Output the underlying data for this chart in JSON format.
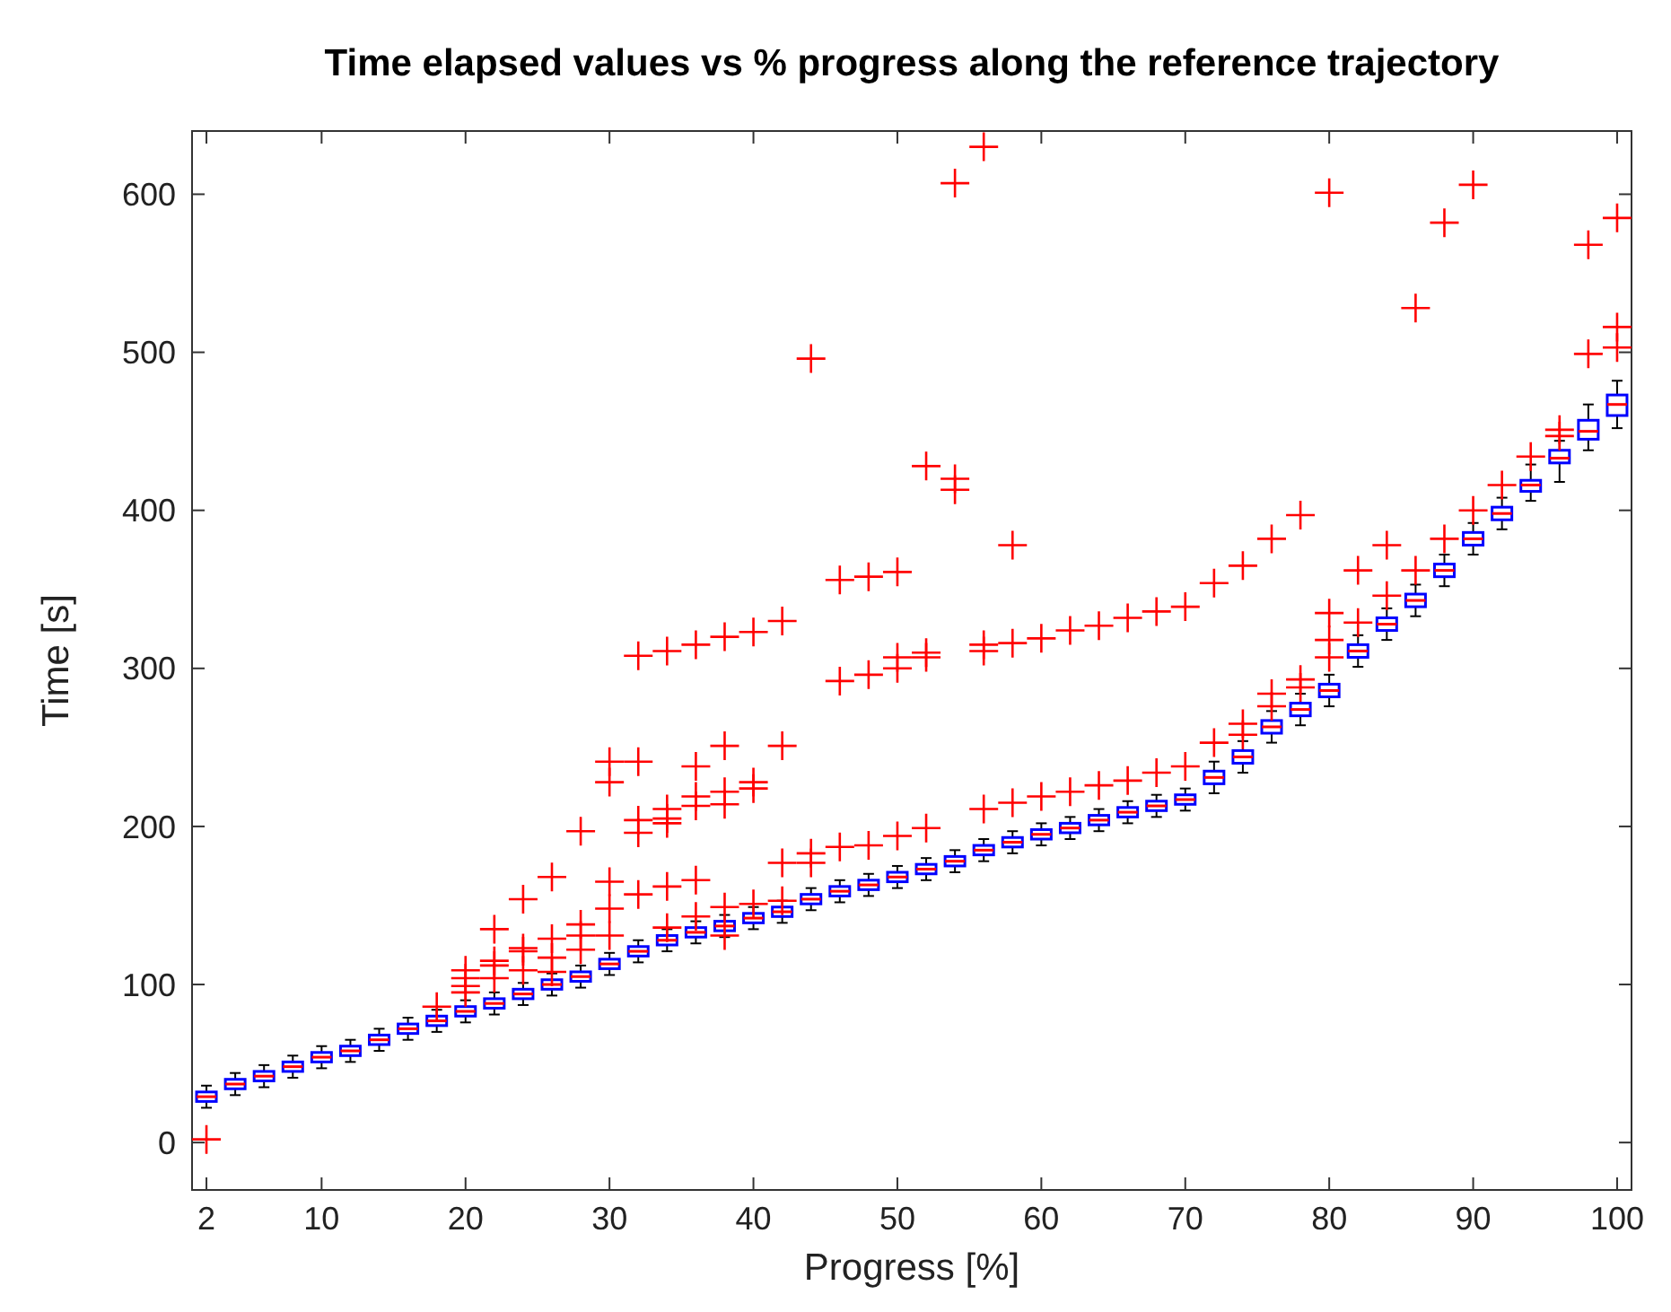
{
  "chart_data": {
    "type": "box",
    "title": "Time elapsed values vs % progress along the reference trajectory",
    "xlabel": "Progress [%]",
    "ylabel": "Time [s]",
    "x": [
      2,
      4,
      6,
      8,
      10,
      12,
      14,
      16,
      18,
      20,
      22,
      24,
      26,
      28,
      30,
      32,
      34,
      36,
      38,
      40,
      42,
      44,
      46,
      48,
      50,
      52,
      54,
      56,
      58,
      60,
      62,
      64,
      66,
      68,
      70,
      72,
      74,
      76,
      78,
      80,
      82,
      84,
      86,
      88,
      90,
      92,
      94,
      96,
      98,
      100
    ],
    "xlim": [
      1,
      101
    ],
    "xticks": [
      2,
      10,
      20,
      30,
      40,
      50,
      60,
      70,
      80,
      90,
      100
    ],
    "ylim": [
      -30,
      640
    ],
    "yticks": [
      0,
      100,
      200,
      300,
      400,
      500,
      600
    ],
    "color": "#0000ff",
    "marker": "cross",
    "grid": false,
    "boxes": [
      {
        "low": 22,
        "q1": 26,
        "median": 29,
        "q3": 32,
        "high": 36,
        "outliers": [
          2
        ]
      },
      {
        "low": 30,
        "q1": 34,
        "median": 37,
        "q3": 40,
        "high": 44
      },
      {
        "low": 35,
        "q1": 39,
        "median": 42,
        "q3": 45,
        "high": 49
      },
      {
        "low": 41,
        "q1": 45,
        "median": 48,
        "q3": 51,
        "high": 55
      },
      {
        "low": 47,
        "q1": 51,
        "median": 54,
        "q3": 57,
        "high": 61
      },
      {
        "low": 51,
        "q1": 55,
        "median": 58,
        "q3": 61,
        "high": 65
      },
      {
        "low": 58,
        "q1": 62,
        "median": 65,
        "q3": 68,
        "high": 72
      },
      {
        "low": 65,
        "q1": 69,
        "median": 72,
        "q3": 75,
        "high": 79
      },
      {
        "low": 70,
        "q1": 74,
        "median": 77,
        "q3": 80,
        "high": 84,
        "outliers": [
          86
        ]
      },
      {
        "low": 76,
        "q1": 80,
        "median": 83,
        "q3": 86,
        "high": 90,
        "outliers": [
          109,
          104,
          99,
          95
        ]
      },
      {
        "low": 81,
        "q1": 85,
        "median": 88,
        "q3": 91,
        "high": 95,
        "outliers": [
          135,
          115,
          112,
          104
        ]
      },
      {
        "low": 87,
        "q1": 91,
        "median": 94,
        "q3": 97,
        "high": 101,
        "outliers": [
          154,
          123,
          121,
          109
        ]
      },
      {
        "low": 93,
        "q1": 97,
        "median": 100,
        "q3": 103,
        "high": 107,
        "outliers": [
          168,
          129,
          117,
          108
        ]
      },
      {
        "low": 98,
        "q1": 102,
        "median": 105,
        "q3": 108,
        "high": 112,
        "outliers": [
          197,
          138,
          131,
          122
        ]
      },
      {
        "low": 106,
        "q1": 110,
        "median": 113,
        "q3": 116,
        "high": 120,
        "outliers": [
          241,
          228,
          165,
          148,
          131
        ]
      },
      {
        "low": 114,
        "q1": 118,
        "median": 121,
        "q3": 124,
        "high": 128,
        "outliers": [
          308,
          241,
          204,
          196,
          157
        ]
      },
      {
        "low": 121,
        "q1": 125,
        "median": 128,
        "q3": 131,
        "high": 135,
        "outliers": [
          311,
          211,
          205,
          202,
          162,
          136
        ]
      },
      {
        "low": 126,
        "q1": 130,
        "median": 133,
        "q3": 136,
        "high": 140,
        "outliers": [
          315,
          238,
          219,
          213,
          166,
          143
        ]
      },
      {
        "low": 130,
        "q1": 134,
        "median": 137,
        "q3": 140,
        "high": 144,
        "outliers": [
          320,
          251,
          222,
          214,
          149,
          131
        ]
      },
      {
        "low": 135,
        "q1": 139,
        "median": 142,
        "q3": 145,
        "high": 149,
        "outliers": [
          323,
          228,
          224,
          151
        ]
      },
      {
        "low": 139,
        "q1": 143,
        "median": 146,
        "q3": 149,
        "high": 153,
        "outliers": [
          330,
          251,
          177,
          153
        ]
      },
      {
        "low": 147,
        "q1": 151,
        "median": 154,
        "q3": 157,
        "high": 161,
        "outliers": [
          496,
          183,
          177
        ]
      },
      {
        "low": 152,
        "q1": 156,
        "median": 159,
        "q3": 162,
        "high": 166,
        "outliers": [
          356,
          292,
          187
        ]
      },
      {
        "low": 156,
        "q1": 160,
        "median": 163,
        "q3": 166,
        "high": 170,
        "outliers": [
          358,
          296,
          188
        ]
      },
      {
        "low": 161,
        "q1": 165,
        "median": 168,
        "q3": 171,
        "high": 175,
        "outliers": [
          361,
          307,
          300,
          194
        ]
      },
      {
        "low": 166,
        "q1": 170,
        "median": 173,
        "q3": 176,
        "high": 180,
        "outliers": [
          428,
          310,
          307,
          199
        ]
      },
      {
        "low": 171,
        "q1": 175,
        "median": 178,
        "q3": 181,
        "high": 185,
        "outliers": [
          607,
          420,
          413
        ]
      },
      {
        "low": 178,
        "q1": 182,
        "median": 185,
        "q3": 188,
        "high": 192,
        "outliers": [
          630,
          315,
          311,
          211
        ]
      },
      {
        "low": 183,
        "q1": 187,
        "median": 190,
        "q3": 193,
        "high": 197,
        "outliers": [
          378,
          316,
          215
        ]
      },
      {
        "low": 188,
        "q1": 192,
        "median": 195,
        "q3": 198,
        "high": 202,
        "outliers": [
          319,
          219
        ]
      },
      {
        "low": 192,
        "q1": 196,
        "median": 199,
        "q3": 202,
        "high": 206,
        "outliers": [
          324,
          222
        ]
      },
      {
        "low": 197,
        "q1": 201,
        "median": 204,
        "q3": 207,
        "high": 211,
        "outliers": [
          327,
          226
        ]
      },
      {
        "low": 202,
        "q1": 206,
        "median": 209,
        "q3": 212,
        "high": 216,
        "outliers": [
          332,
          229
        ]
      },
      {
        "low": 206,
        "q1": 210,
        "median": 213,
        "q3": 216,
        "high": 220,
        "outliers": [
          336,
          234
        ]
      },
      {
        "low": 210,
        "q1": 214,
        "median": 217,
        "q3": 220,
        "high": 224,
        "outliers": [
          339,
          238
        ]
      },
      {
        "low": 221,
        "q1": 227,
        "median": 231,
        "q3": 235,
        "high": 241,
        "outliers": [
          354,
          253
        ]
      },
      {
        "low": 234,
        "q1": 240,
        "median": 244,
        "q3": 248,
        "high": 254,
        "outliers": [
          365,
          265,
          258
        ]
      },
      {
        "low": 253,
        "q1": 259,
        "median": 263,
        "q3": 267,
        "high": 273,
        "outliers": [
          382,
          284,
          276
        ]
      },
      {
        "low": 264,
        "q1": 270,
        "median": 274,
        "q3": 278,
        "high": 284,
        "outliers": [
          397,
          293,
          288
        ]
      },
      {
        "low": 276,
        "q1": 282,
        "median": 286,
        "q3": 290,
        "high": 296,
        "outliers": [
          601,
          335,
          318,
          307
        ]
      },
      {
        "low": 301,
        "q1": 307,
        "median": 311,
        "q3": 315,
        "high": 321,
        "outliers": [
          362,
          329
        ]
      },
      {
        "low": 318,
        "q1": 324,
        "median": 328,
        "q3": 332,
        "high": 338,
        "outliers": [
          378,
          346
        ]
      },
      {
        "low": 333,
        "q1": 339,
        "median": 343,
        "q3": 347,
        "high": 353,
        "outliers": [
          528,
          362
        ]
      },
      {
        "low": 352,
        "q1": 358,
        "median": 362,
        "q3": 366,
        "high": 372,
        "outliers": [
          582,
          382
        ]
      },
      {
        "low": 372,
        "q1": 378,
        "median": 382,
        "q3": 386,
        "high": 392,
        "outliers": [
          606,
          400
        ]
      },
      {
        "low": 388,
        "q1": 394,
        "median": 398,
        "q3": 402,
        "high": 408,
        "outliers": [
          416
        ]
      },
      {
        "low": 406,
        "q1": 412,
        "median": 416,
        "q3": 419,
        "high": 429,
        "outliers": [
          434
        ]
      },
      {
        "low": 418,
        "q1": 430,
        "median": 433,
        "q3": 438,
        "high": 444,
        "outliers": [
          451,
          447
        ]
      },
      {
        "low": 438,
        "q1": 445,
        "median": 450,
        "q3": 457,
        "high": 467,
        "outliers": [
          568,
          499
        ]
      },
      {
        "low": 452,
        "q1": 460,
        "median": 467,
        "q3": 473,
        "high": 482,
        "outliers": [
          585,
          516,
          503
        ]
      }
    ]
  }
}
